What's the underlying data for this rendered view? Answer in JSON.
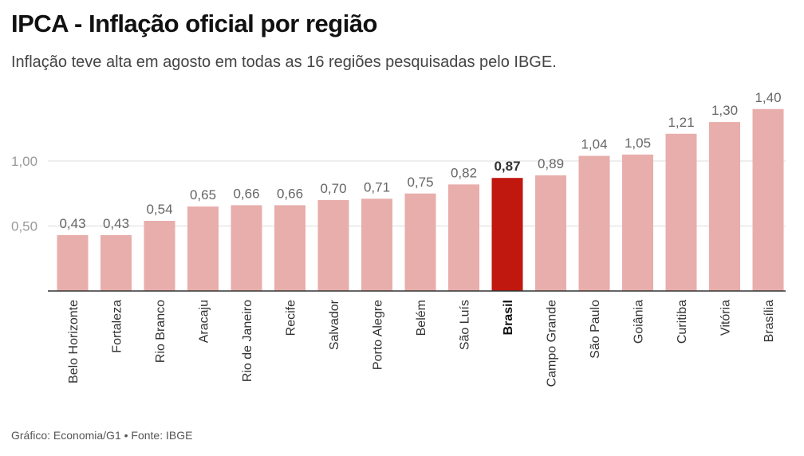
{
  "header": {
    "title": "IPCA - Inflação oficial por região",
    "subtitle": "Inflação teve alta em agosto em todas as 16 regiões pesquisadas pelo IBGE."
  },
  "footer": {
    "source": "Gráfico: Economia/G1 • Fonte: IBGE"
  },
  "colors": {
    "bar": "#e8aeab",
    "highlight": "#c0170f",
    "grid": "#dddddd",
    "axis": "#333333"
  },
  "chart_data": {
    "type": "bar",
    "categories": [
      "Belo Horizonte",
      "Fortaleza",
      "Rio Branco",
      "Aracaju",
      "Rio de Janeiro",
      "Recife",
      "Salvador",
      "Porto Alegre",
      "Belém",
      "São Luís",
      "Brasil",
      "Campo Grande",
      "São Paulo",
      "Goiânia",
      "Curitiba",
      "Vitória",
      "Brasília"
    ],
    "values": [
      0.43,
      0.43,
      0.54,
      0.65,
      0.66,
      0.66,
      0.7,
      0.71,
      0.75,
      0.82,
      0.87,
      0.89,
      1.04,
      1.05,
      1.21,
      1.3,
      1.4
    ],
    "value_labels": [
      "0,43",
      "0,43",
      "0,54",
      "0,65",
      "0,66",
      "0,66",
      "0,70",
      "0,71",
      "0,75",
      "0,82",
      "0,87",
      "0,89",
      "1,04",
      "1,05",
      "1,21",
      "1,30",
      "1,40"
    ],
    "highlight_category": "Brasil",
    "yticks": [
      0.5,
      1.0
    ],
    "ytick_labels": [
      "0,50",
      "1,00"
    ],
    "ylim": [
      0,
      1.4
    ],
    "grid": true,
    "title": "IPCA - Inflação oficial por região",
    "subtitle": "Inflação teve alta em agosto em todas as 16 regiões pesquisadas pelo IBGE."
  }
}
